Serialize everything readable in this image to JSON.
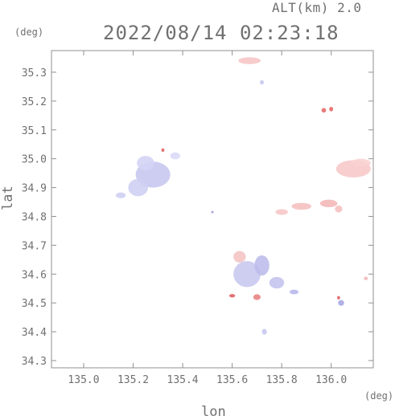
{
  "header": {
    "altitude": "ALT(km) 2.0",
    "datetime": "2022/08/14 02:23:18"
  },
  "colors": {
    "axis": "#909090",
    "text": "#707070",
    "approaching": "#8c8cff",
    "receding": "#ff8c8c"
  },
  "chart_data": {
    "type": "heatmap",
    "xlabel": "lon",
    "ylabel": "lat",
    "x_unit": "(deg)",
    "y_unit": "(deg)",
    "xlim": [
      134.87,
      136.17
    ],
    "ylim": [
      34.275,
      35.375
    ],
    "x_ticks": [
      135.0,
      135.2,
      135.4,
      135.6,
      135.8,
      136.0
    ],
    "y_ticks": [
      34.3,
      34.4,
      34.5,
      34.6,
      34.7,
      34.8,
      34.9,
      35.0,
      35.1,
      35.2,
      35.3
    ],
    "blobs": [
      {
        "lon": 135.67,
        "lat": 35.34,
        "rx": 0.045,
        "ry": 0.012,
        "color": "#f7c6c6"
      },
      {
        "lon": 135.72,
        "lat": 35.265,
        "rx": 0.008,
        "ry": 0.008,
        "color": "#c9c9ee"
      },
      {
        "lon": 135.97,
        "lat": 35.168,
        "rx": 0.009,
        "ry": 0.008,
        "color": "#e86a6a"
      },
      {
        "lon": 136.0,
        "lat": 35.172,
        "rx": 0.008,
        "ry": 0.008,
        "color": "#e86a6a"
      },
      {
        "lon": 135.28,
        "lat": 34.945,
        "rx": 0.07,
        "ry": 0.045,
        "color": "#c8c8f0"
      },
      {
        "lon": 135.22,
        "lat": 34.9,
        "rx": 0.04,
        "ry": 0.03,
        "color": "#cfcff3"
      },
      {
        "lon": 135.25,
        "lat": 34.985,
        "rx": 0.035,
        "ry": 0.025,
        "color": "#d4d4f5"
      },
      {
        "lon": 135.15,
        "lat": 34.873,
        "rx": 0.02,
        "ry": 0.01,
        "color": "#cfcff3"
      },
      {
        "lon": 135.37,
        "lat": 35.01,
        "rx": 0.02,
        "ry": 0.012,
        "color": "#dadaf7"
      },
      {
        "lon": 135.32,
        "lat": 35.03,
        "rx": 0.006,
        "ry": 0.006,
        "color": "#e06060"
      },
      {
        "lon": 136.09,
        "lat": 34.965,
        "rx": 0.07,
        "ry": 0.03,
        "color": "#f7c9c9"
      },
      {
        "lon": 136.12,
        "lat": 34.985,
        "rx": 0.04,
        "ry": 0.015,
        "color": "#f9d2d2"
      },
      {
        "lon": 135.8,
        "lat": 34.815,
        "rx": 0.025,
        "ry": 0.01,
        "color": "#f7c6c6"
      },
      {
        "lon": 135.88,
        "lat": 34.835,
        "rx": 0.04,
        "ry": 0.012,
        "color": "#f5c0c0"
      },
      {
        "lon": 135.99,
        "lat": 34.845,
        "rx": 0.035,
        "ry": 0.013,
        "color": "#f3b8b8"
      },
      {
        "lon": 136.03,
        "lat": 34.826,
        "rx": 0.015,
        "ry": 0.012,
        "color": "#f5c0c0"
      },
      {
        "lon": 135.66,
        "lat": 34.6,
        "rx": 0.055,
        "ry": 0.045,
        "color": "#c9c9f0"
      },
      {
        "lon": 135.72,
        "lat": 34.63,
        "rx": 0.03,
        "ry": 0.035,
        "color": "#bdbdeb"
      },
      {
        "lon": 135.78,
        "lat": 34.57,
        "rx": 0.03,
        "ry": 0.02,
        "color": "#c4c4ee"
      },
      {
        "lon": 135.63,
        "lat": 34.66,
        "rx": 0.025,
        "ry": 0.02,
        "color": "#f4c4c4"
      },
      {
        "lon": 135.7,
        "lat": 34.52,
        "rx": 0.015,
        "ry": 0.01,
        "color": "#e98484"
      },
      {
        "lon": 135.6,
        "lat": 34.525,
        "rx": 0.012,
        "ry": 0.006,
        "color": "#e06060"
      },
      {
        "lon": 135.85,
        "lat": 34.538,
        "rx": 0.018,
        "ry": 0.008,
        "color": "#b8b8ec"
      },
      {
        "lon": 135.73,
        "lat": 34.4,
        "rx": 0.01,
        "ry": 0.01,
        "color": "#c8c8f0"
      },
      {
        "lon": 136.04,
        "lat": 34.5,
        "rx": 0.012,
        "ry": 0.01,
        "color": "#a9a9e6"
      },
      {
        "lon": 136.03,
        "lat": 34.518,
        "rx": 0.006,
        "ry": 0.006,
        "color": "#e06060"
      },
      {
        "lon": 136.14,
        "lat": 34.585,
        "rx": 0.008,
        "ry": 0.006,
        "color": "#f3b8b8"
      },
      {
        "lon": 135.52,
        "lat": 34.815,
        "rx": 0.005,
        "ry": 0.004,
        "color": "#a0a0e0"
      }
    ]
  }
}
